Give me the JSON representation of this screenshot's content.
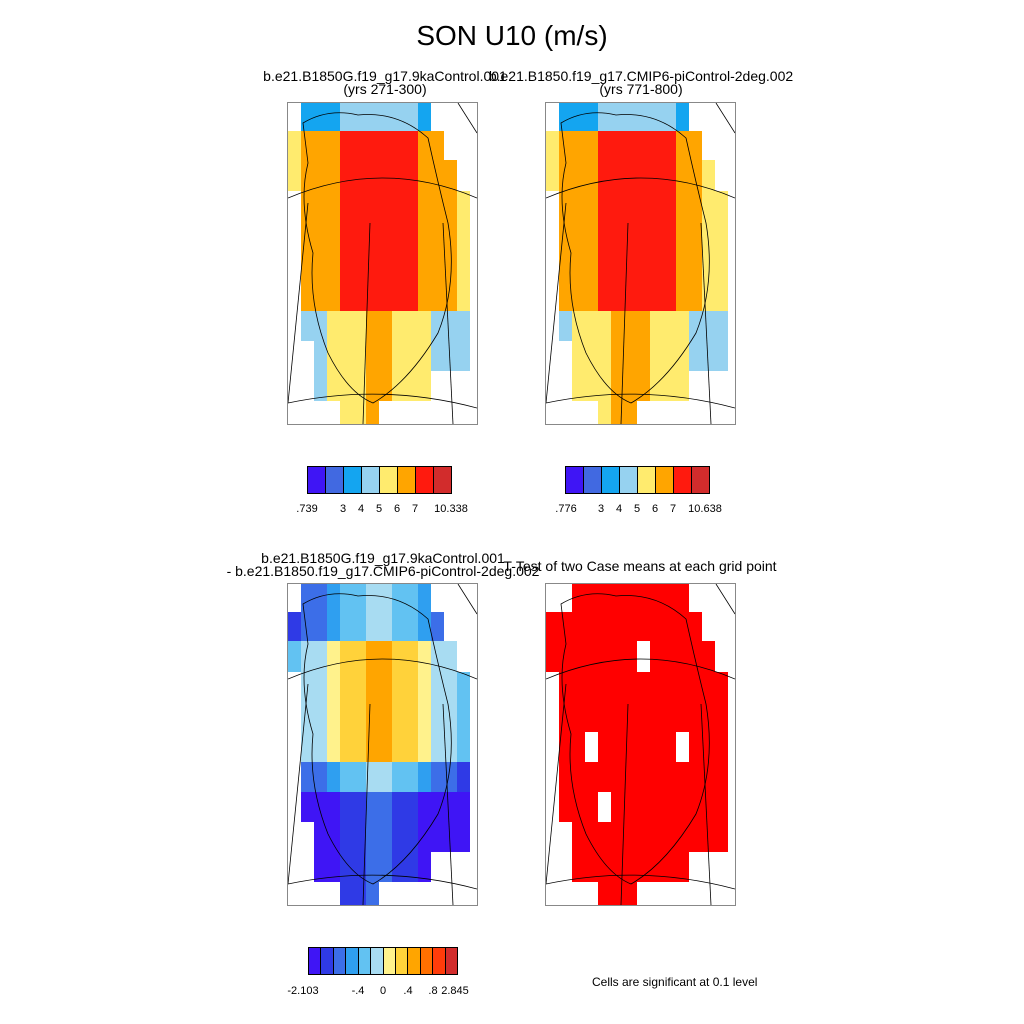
{
  "main_title": "SON U10 (m/s)",
  "panels": [
    {
      "id": "p1",
      "title_line1": "b.e21.B1850G.f19_g17.9kaControl.001",
      "title_line2": "(yrs 271-300)"
    },
    {
      "id": "p2",
      "title_line1": "b.e21.B1850.f19_g17.CMIP6-piControl-2deg.002",
      "title_line2": "(yrs 771-800)"
    },
    {
      "id": "p3",
      "title_line1": "b.e21.B1850G.f19_g17.9kaControl.001",
      "title_line2": "- b.e21.B1850.f19_g17.CMIP6-piControl-2deg.002"
    },
    {
      "id": "p4",
      "title_line1": "T-Test of two Case means at each grid point",
      "title_line2": ""
    }
  ],
  "colorbars": {
    "abs": {
      "colors": [
        "#3f15f5",
        "#4169e1",
        "#14a5f0",
        "#96d2f0",
        "#ffeb6e",
        "#ffa500",
        "#ff1a0e",
        "#d22c2c"
      ]
    },
    "cb1": {
      "labels": [
        ".739",
        "3",
        "4",
        "5",
        "6",
        "7",
        "10.338"
      ]
    },
    "cb2": {
      "labels": [
        ".776",
        "3",
        "4",
        "5",
        "6",
        "7",
        "10.638"
      ]
    },
    "diff": {
      "colors": [
        "#3f15f5",
        "#2f3ae6",
        "#3c6ee8",
        "#2f9ff0",
        "#62c2f2",
        "#a8dcf2",
        "#fff28c",
        "#ffd23a",
        "#ffa500",
        "#ff7000",
        "#ff3c0a",
        "#d22c2c"
      ],
      "labels": [
        "-2.103",
        "-.4",
        "0",
        ".4",
        ".8",
        "2.845"
      ]
    }
  },
  "significance_note": "Cells are significant at 0.1 level",
  "significance_color": "#ff0000"
}
